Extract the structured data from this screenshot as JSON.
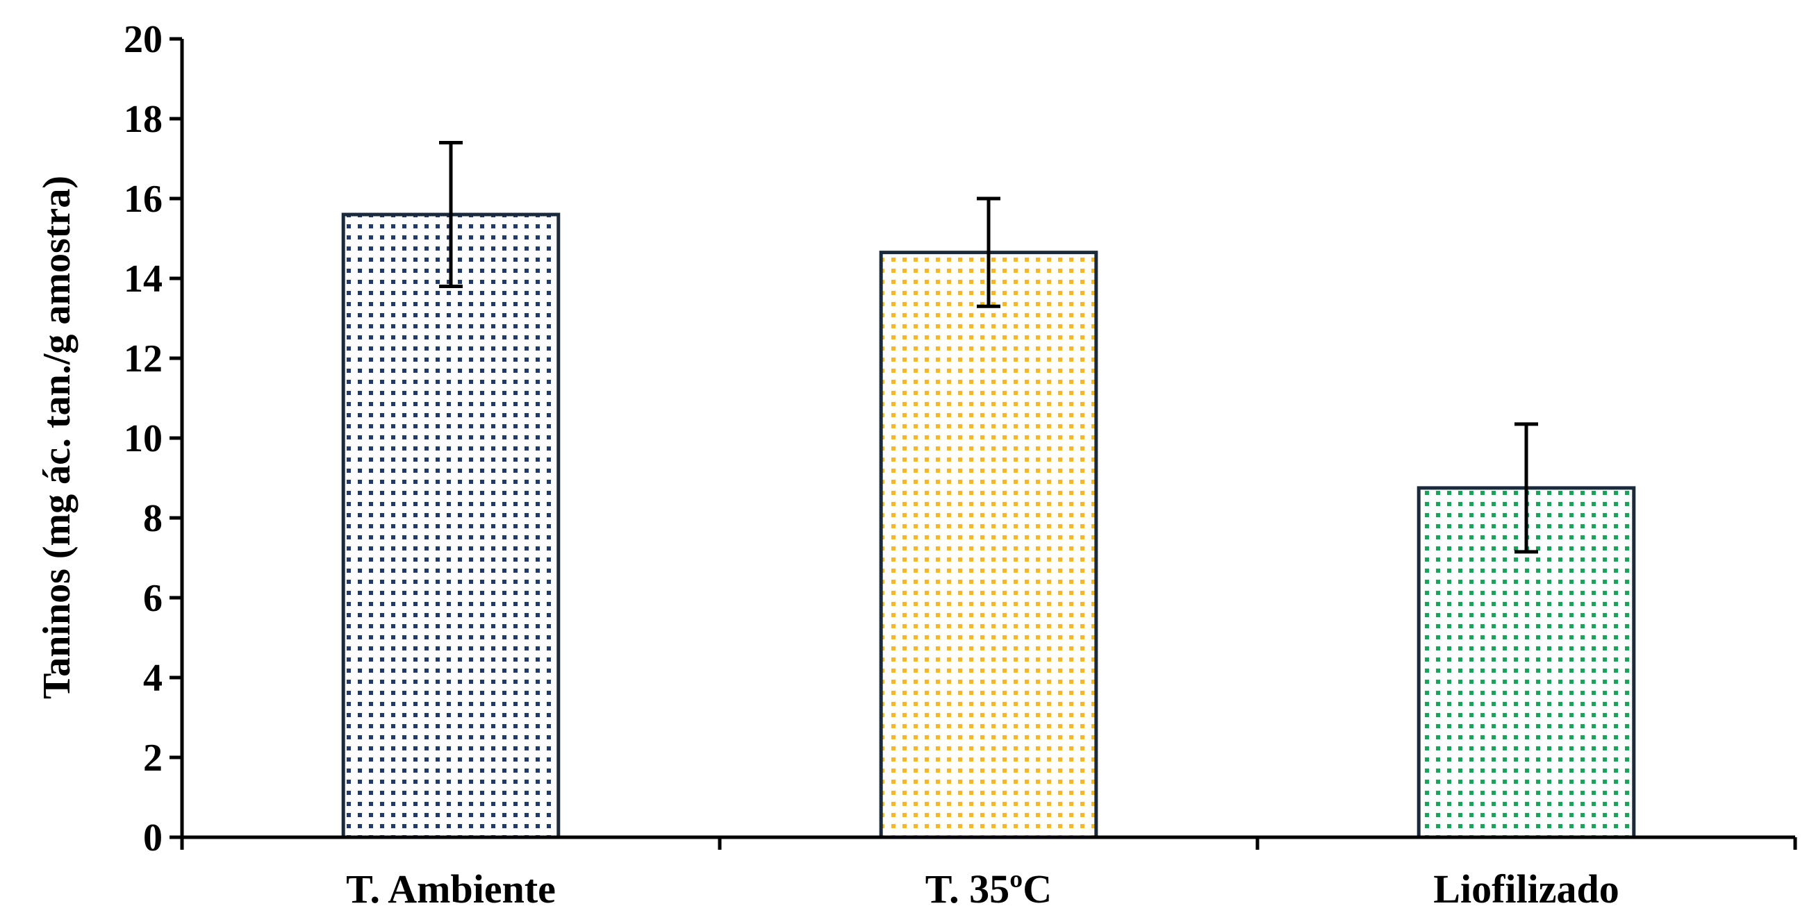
{
  "chart_data": {
    "type": "bar",
    "title": "",
    "xlabel": "",
    "ylabel": "Taninos (mg ác. tan./g amostra)",
    "categories": [
      "T. Ambiente",
      "T. 35ºC",
      "Liofilizado"
    ],
    "series": [
      {
        "values": [
          15.6,
          14.65,
          8.75
        ],
        "errors": [
          1.8,
          1.35,
          1.6
        ]
      }
    ],
    "ylim": [
      0,
      20
    ],
    "yticks": [
      "0",
      "2",
      "4",
      "6",
      "8",
      "10",
      "12",
      "14",
      "16",
      "18",
      "20"
    ],
    "grid": false,
    "legend": "none",
    "colors": {
      "bar_outline": "#1b2a3a",
      "dots": [
        "#1f3a6b",
        "#f6b820",
        "#19a35a"
      ],
      "error_bar": "#000000",
      "axis": "#000000"
    }
  }
}
